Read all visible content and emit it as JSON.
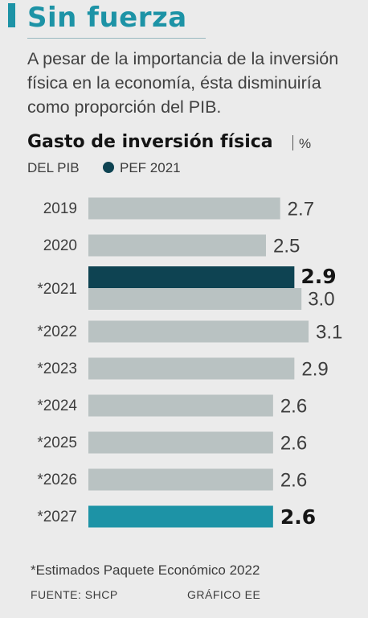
{
  "header": {
    "title": "Sin fuerza",
    "subtitle": "A pesar de la importancia de la inversión física en la economía, ésta disminuiría como proporción del PIB."
  },
  "chart_title": "Gasto de inversión física",
  "chart_unit": "%",
  "chart_unit_line2": "DEL PIB",
  "legend": {
    "label": "PEF 2021",
    "color": "#0e4352"
  },
  "chart_data": {
    "type": "bar",
    "orientation": "horizontal",
    "title": "Gasto de inversión física",
    "unit": "% DEL PIB",
    "categories": [
      "2019",
      "2020",
      "*2021",
      "*2022",
      "*2023",
      "*2024",
      "*2025",
      "*2026",
      "*2027"
    ],
    "series": [
      {
        "name": "PEF 2021",
        "values": [
          null,
          null,
          2.9,
          null,
          null,
          null,
          null,
          null,
          null
        ],
        "color": "#0e4352"
      },
      {
        "values": [
          2.7,
          2.5,
          3.0,
          3.1,
          2.9,
          2.6,
          2.6,
          2.6,
          2.6
        ],
        "color": "#b9c2c2"
      }
    ],
    "highlight": {
      "category": "*2027",
      "color": "#1d93a6"
    },
    "xlim": [
      0,
      3.1
    ],
    "labels": {
      "2019": [
        "2.7"
      ],
      "2020": [
        "2.5"
      ],
      "*2021": [
        "2.9",
        "3.0"
      ],
      "*2022": [
        "3.1"
      ],
      "*2023": [
        "2.9"
      ],
      "*2024": [
        "2.6"
      ],
      "*2025": [
        "2.6"
      ],
      "*2026": [
        "2.6"
      ],
      "*2027": [
        "2.6"
      ]
    }
  },
  "footnote": "*Estimados Paquete Económico 2022",
  "source": "FUENTE: SHCP",
  "credit": "GRÁFICO EE"
}
